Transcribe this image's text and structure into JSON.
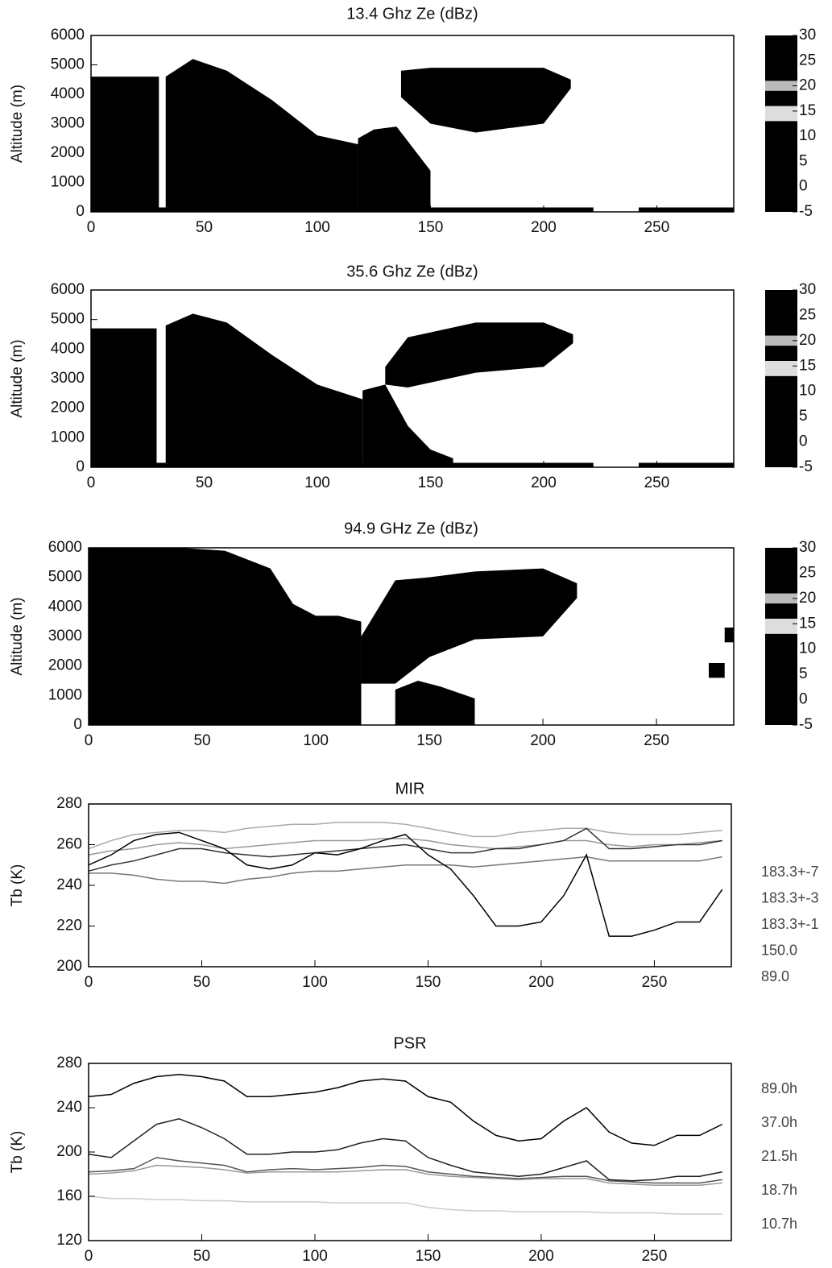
{
  "chart_data": [
    {
      "type": "area",
      "title": "13.4 Ghz Ze (dBz)",
      "y_label": "Altitude (m)",
      "xlim": [
        0,
        284
      ],
      "xticks": [
        0,
        50,
        100,
        150,
        200,
        250
      ],
      "ylim": [
        0,
        6000
      ],
      "yticks": [
        0,
        1000,
        2000,
        3000,
        4000,
        5000,
        6000
      ],
      "color": "#000000",
      "echoes": [
        {
          "x": [
            0,
            30
          ],
          "top": [
            4600,
            4600
          ],
          "base": [
            0,
            0
          ]
        },
        {
          "x": [
            33,
            45,
            60,
            80,
            100,
            118
          ],
          "top": [
            4600,
            5200,
            4800,
            3800,
            2600,
            2300
          ],
          "base": [
            0,
            0,
            0,
            0,
            0,
            0
          ]
        },
        {
          "x": [
            118,
            125,
            135,
            150
          ],
          "top": [
            2500,
            2800,
            2900,
            1400
          ],
          "base": [
            0,
            0,
            0,
            0
          ]
        },
        {
          "x": [
            137,
            150,
            170,
            200,
            212
          ],
          "top": [
            4800,
            4900,
            4900,
            4900,
            4500
          ],
          "base": [
            3900,
            3000,
            2700,
            3000,
            4200
          ]
        },
        {
          "x": [
            0,
            222
          ],
          "top": [
            150,
            150
          ],
          "base": [
            0,
            0
          ]
        },
        {
          "x": [
            242,
            284
          ],
          "top": [
            150,
            150
          ],
          "base": [
            0,
            0
          ]
        }
      ],
      "colorbar": {
        "lim": [
          -5,
          30
        ],
        "ticks": [
          30,
          25,
          20,
          15,
          10,
          5,
          0,
          -5
        ]
      }
    },
    {
      "type": "area",
      "title": "35.6 Ghz Ze (dBz)",
      "y_label": "Altitude (m)",
      "xlim": [
        0,
        284
      ],
      "xticks": [
        0,
        50,
        100,
        150,
        200,
        250
      ],
      "ylim": [
        0,
        6000
      ],
      "yticks": [
        0,
        1000,
        2000,
        3000,
        4000,
        5000,
        6000
      ],
      "color": "#000000",
      "echoes": [
        {
          "x": [
            0,
            29
          ],
          "top": [
            4700,
            4700
          ],
          "base": [
            0,
            0
          ]
        },
        {
          "x": [
            33,
            45,
            60,
            80,
            100,
            120
          ],
          "top": [
            4800,
            5200,
            4900,
            3800,
            2800,
            2300
          ],
          "base": [
            0,
            0,
            0,
            0,
            0,
            0
          ]
        },
        {
          "x": [
            120,
            130,
            140,
            150,
            160
          ],
          "top": [
            2600,
            2800,
            1400,
            600,
            300
          ],
          "base": [
            0,
            0,
            0,
            0,
            0
          ]
        },
        {
          "x": [
            130,
            140,
            170,
            200,
            213
          ],
          "top": [
            3400,
            4400,
            4900,
            4900,
            4500
          ],
          "base": [
            2800,
            2700,
            3200,
            3400,
            4200
          ]
        },
        {
          "x": [
            0,
            222
          ],
          "top": [
            150,
            150
          ],
          "base": [
            0,
            0
          ]
        },
        {
          "x": [
            242,
            284
          ],
          "top": [
            150,
            150
          ],
          "base": [
            0,
            0
          ]
        }
      ],
      "colorbar": {
        "lim": [
          -5,
          30
        ],
        "ticks": [
          30,
          25,
          20,
          15,
          10,
          5,
          0,
          -5
        ]
      }
    },
    {
      "type": "area",
      "title": "94.9 GHz Ze (dBz)",
      "y_label": "Altitude (m)",
      "xlim": [
        0,
        284
      ],
      "xticks": [
        0,
        50,
        100,
        150,
        200,
        250
      ],
      "ylim": [
        0,
        6000
      ],
      "yticks": [
        0,
        1000,
        2000,
        3000,
        4000,
        5000,
        6000
      ],
      "color": "#000000",
      "echoes": [
        {
          "x": [
            0,
            10,
            40,
            60,
            80,
            90,
            100,
            110,
            120
          ],
          "top": [
            6000,
            6000,
            6000,
            5900,
            5300,
            4100,
            3700,
            3700,
            3500
          ],
          "base": [
            0,
            0,
            0,
            0,
            0,
            0,
            0,
            0,
            0
          ]
        },
        {
          "x": [
            120,
            135,
            150,
            170,
            200,
            215
          ],
          "top": [
            3000,
            4900,
            5000,
            5200,
            5300,
            4800
          ],
          "base": [
            1400,
            1400,
            2300,
            2900,
            3000,
            4300
          ]
        },
        {
          "x": [
            135,
            145,
            155,
            170
          ],
          "top": [
            1200,
            1500,
            1300,
            900
          ],
          "base": [
            0,
            0,
            0,
            0
          ]
        },
        {
          "x": [
            280,
            284
          ],
          "top": [
            3300,
            3300
          ],
          "base": [
            2800,
            2800
          ]
        },
        {
          "x": [
            273,
            280
          ],
          "top": [
            2100,
            2100
          ],
          "base": [
            1600,
            1600
          ]
        }
      ],
      "colorbar": {
        "lim": [
          -5,
          30
        ],
        "ticks": [
          30,
          25,
          20,
          15,
          10,
          5,
          0,
          -5
        ]
      }
    },
    {
      "type": "line",
      "title": "MIR",
      "y_label": "Tb (K)",
      "xlim": [
        0,
        284
      ],
      "xticks": [
        0,
        50,
        100,
        150,
        200,
        250
      ],
      "ylim": [
        200,
        280
      ],
      "yticks": [
        200,
        220,
        240,
        260,
        280
      ],
      "x": [
        0,
        10,
        20,
        30,
        40,
        50,
        60,
        70,
        80,
        90,
        100,
        110,
        120,
        130,
        140,
        150,
        160,
        170,
        180,
        190,
        200,
        210,
        220,
        230,
        240,
        250,
        260,
        270,
        280
      ],
      "series": [
        {
          "name": "183.3+-7",
          "color": "#777777",
          "values": [
            246,
            246,
            245,
            243,
            242,
            242,
            241,
            243,
            244,
            246,
            247,
            247,
            248,
            249,
            250,
            250,
            250,
            249,
            250,
            251,
            252,
            253,
            254,
            252,
            252,
            252,
            252,
            252,
            254
          ]
        },
        {
          "name": "183.3+-3",
          "color": "#999999",
          "values": [
            255,
            257,
            258,
            260,
            261,
            260,
            258,
            259,
            260,
            261,
            262,
            262,
            262,
            263,
            263,
            262,
            260,
            259,
            258,
            259,
            260,
            262,
            262,
            260,
            259,
            260,
            260,
            261,
            262
          ]
        },
        {
          "name": "183.3+-1",
          "color": "#aaaaaa",
          "values": [
            258,
            262,
            265,
            266,
            267,
            267,
            266,
            268,
            269,
            270,
            270,
            271,
            271,
            271,
            270,
            268,
            266,
            264,
            264,
            266,
            267,
            268,
            268,
            266,
            265,
            265,
            265,
            266,
            267
          ]
        },
        {
          "name": "150.0",
          "color": "#333333",
          "values": [
            247,
            250,
            252,
            255,
            258,
            258,
            256,
            255,
            254,
            255,
            256,
            257,
            258,
            259,
            260,
            258,
            256,
            256,
            258,
            258,
            260,
            262,
            268,
            258,
            258,
            259,
            260,
            260,
            262
          ]
        },
        {
          "name": "89.0",
          "color": "#000000",
          "values": [
            250,
            255,
            262,
            265,
            266,
            262,
            258,
            250,
            248,
            250,
            256,
            255,
            258,
            262,
            265,
            255,
            248,
            235,
            220,
            220,
            222,
            235,
            255,
            215,
            215,
            218,
            222,
            222,
            238
          ]
        }
      ]
    },
    {
      "type": "line",
      "title": "PSR",
      "y_label": "Tb (K)",
      "xlim": [
        0,
        284
      ],
      "xticks": [
        0,
        50,
        100,
        150,
        200,
        250
      ],
      "ylim": [
        120,
        280
      ],
      "yticks": [
        120,
        160,
        200,
        240,
        280
      ],
      "x": [
        0,
        10,
        20,
        30,
        40,
        50,
        60,
        70,
        80,
        90,
        100,
        110,
        120,
        130,
        140,
        150,
        160,
        170,
        180,
        190,
        200,
        210,
        220,
        230,
        240,
        250,
        260,
        270,
        280
      ],
      "series": [
        {
          "name": "89.0h",
          "color": "#000000",
          "values": [
            250,
            252,
            262,
            268,
            270,
            268,
            264,
            250,
            250,
            252,
            254,
            258,
            264,
            266,
            264,
            250,
            245,
            228,
            215,
            210,
            212,
            228,
            240,
            218,
            208,
            206,
            215,
            215,
            225
          ]
        },
        {
          "name": "37.0h",
          "color": "#222222",
          "values": [
            198,
            195,
            210,
            225,
            230,
            222,
            212,
            198,
            198,
            200,
            200,
            202,
            208,
            212,
            210,
            195,
            188,
            182,
            180,
            178,
            180,
            186,
            192,
            175,
            174,
            175,
            178,
            178,
            182
          ]
        },
        {
          "name": "21.5h",
          "color": "#555555",
          "values": [
            182,
            183,
            185,
            195,
            192,
            190,
            188,
            182,
            184,
            185,
            184,
            185,
            186,
            188,
            187,
            182,
            180,
            178,
            177,
            176,
            177,
            178,
            178,
            174,
            173,
            172,
            172,
            172,
            175
          ]
        },
        {
          "name": "18.7h",
          "color": "#999999",
          "values": [
            180,
            181,
            183,
            188,
            187,
            186,
            184,
            181,
            182,
            182,
            182,
            182,
            183,
            184,
            184,
            180,
            178,
            177,
            176,
            175,
            176,
            176,
            176,
            172,
            171,
            170,
            170,
            170,
            172
          ]
        },
        {
          "name": "10.7h",
          "color": "#cccccc",
          "values": [
            160,
            158,
            158,
            157,
            157,
            156,
            156,
            155,
            155,
            155,
            155,
            154,
            154,
            154,
            154,
            150,
            148,
            147,
            147,
            146,
            146,
            146,
            146,
            145,
            145,
            145,
            144,
            144,
            144
          ]
        }
      ]
    }
  ]
}
